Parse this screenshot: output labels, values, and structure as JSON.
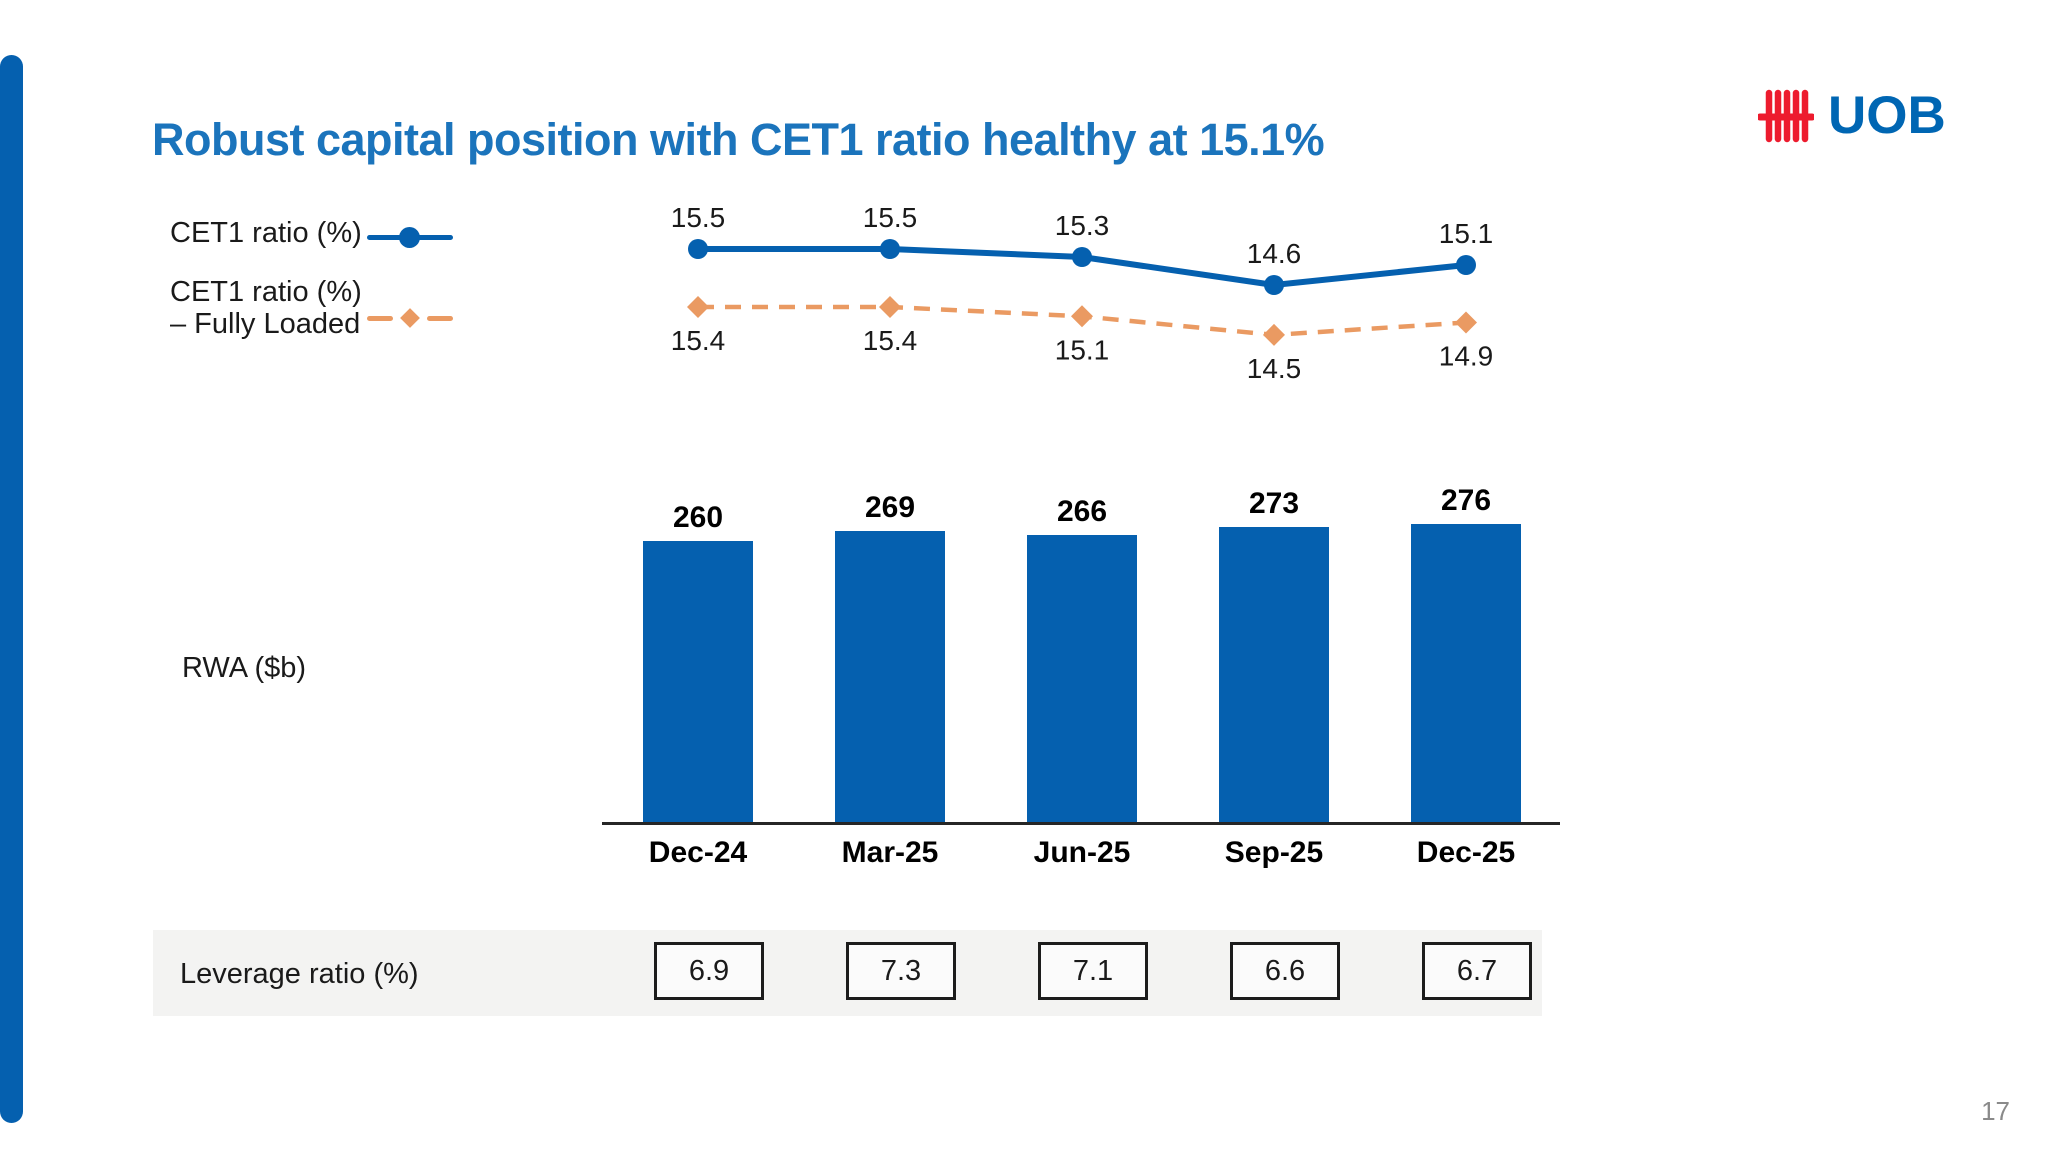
{
  "slide": {
    "title": "Robust capital position with CET1 ratio healthy at 15.1%",
    "logo_text": "UOB",
    "page_number": "17"
  },
  "colors": {
    "title_blue": "#1B74BC",
    "chart_blue": "#0560AF",
    "fully_loaded_orange": "#EA9A62",
    "logo_red": "#ED1B2E",
    "logo_blue": "#0066B3",
    "leverage_row_bg": "#F3F3F2",
    "axis_dark": "#262626",
    "page_number_gray": "#8A8A8A"
  },
  "legend": {
    "items": [
      {
        "label_line1": "CET1 ratio (%)",
        "label_line2": ""
      },
      {
        "label_line1": "CET1 ratio (%)",
        "label_line2": "– Fully Loaded"
      }
    ]
  },
  "chart_data": [
    {
      "type": "line",
      "categories": [
        "Dec-24",
        "Mar-25",
        "Jun-25",
        "Sep-25",
        "Dec-25"
      ],
      "series": [
        {
          "name": "CET1 ratio (%)",
          "values": [
            15.5,
            15.5,
            15.3,
            14.6,
            15.1
          ],
          "style": "solid",
          "marker": "circle",
          "color": "#0560AF"
        },
        {
          "name": "CET1 ratio (%) – Fully Loaded",
          "values": [
            15.4,
            15.4,
            15.1,
            14.5,
            14.9
          ],
          "style": "dashed",
          "marker": "diamond",
          "color": "#EA9A62"
        }
      ],
      "data_labels": true,
      "grid": false,
      "legend_position": "left"
    },
    {
      "type": "bar",
      "label": "RWA ($b)",
      "categories": [
        "Dec-24",
        "Mar-25",
        "Jun-25",
        "Sep-25",
        "Dec-25"
      ],
      "values": [
        260,
        269,
        266,
        273,
        276
      ],
      "bar_color": "#0560AF",
      "grid": false,
      "data_labels": true
    },
    {
      "type": "table",
      "label": "Leverage ratio (%)",
      "categories": [
        "Dec-24",
        "Mar-25",
        "Jun-25",
        "Sep-25",
        "Dec-25"
      ],
      "values": [
        6.9,
        7.3,
        7.1,
        6.6,
        6.7
      ]
    }
  ]
}
